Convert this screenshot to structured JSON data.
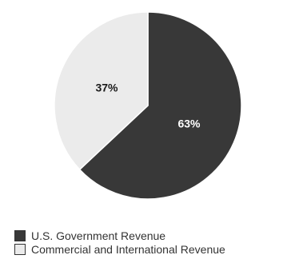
{
  "chart_data": {
    "type": "pie",
    "title": "",
    "slices": [
      {
        "label": "U.S. Government Revenue",
        "value": 63,
        "display": "63%",
        "color": "#383838",
        "text_color": "#ffffff"
      },
      {
        "label": "Commercial and International Revenue",
        "value": 37,
        "display": "37%",
        "color": "#ebebeb",
        "text_color": "#1a1a1a"
      }
    ],
    "start_angle_deg": 0,
    "direction": "clockwise",
    "legend_position": "bottom-left",
    "edge_color": "#ffffff"
  }
}
